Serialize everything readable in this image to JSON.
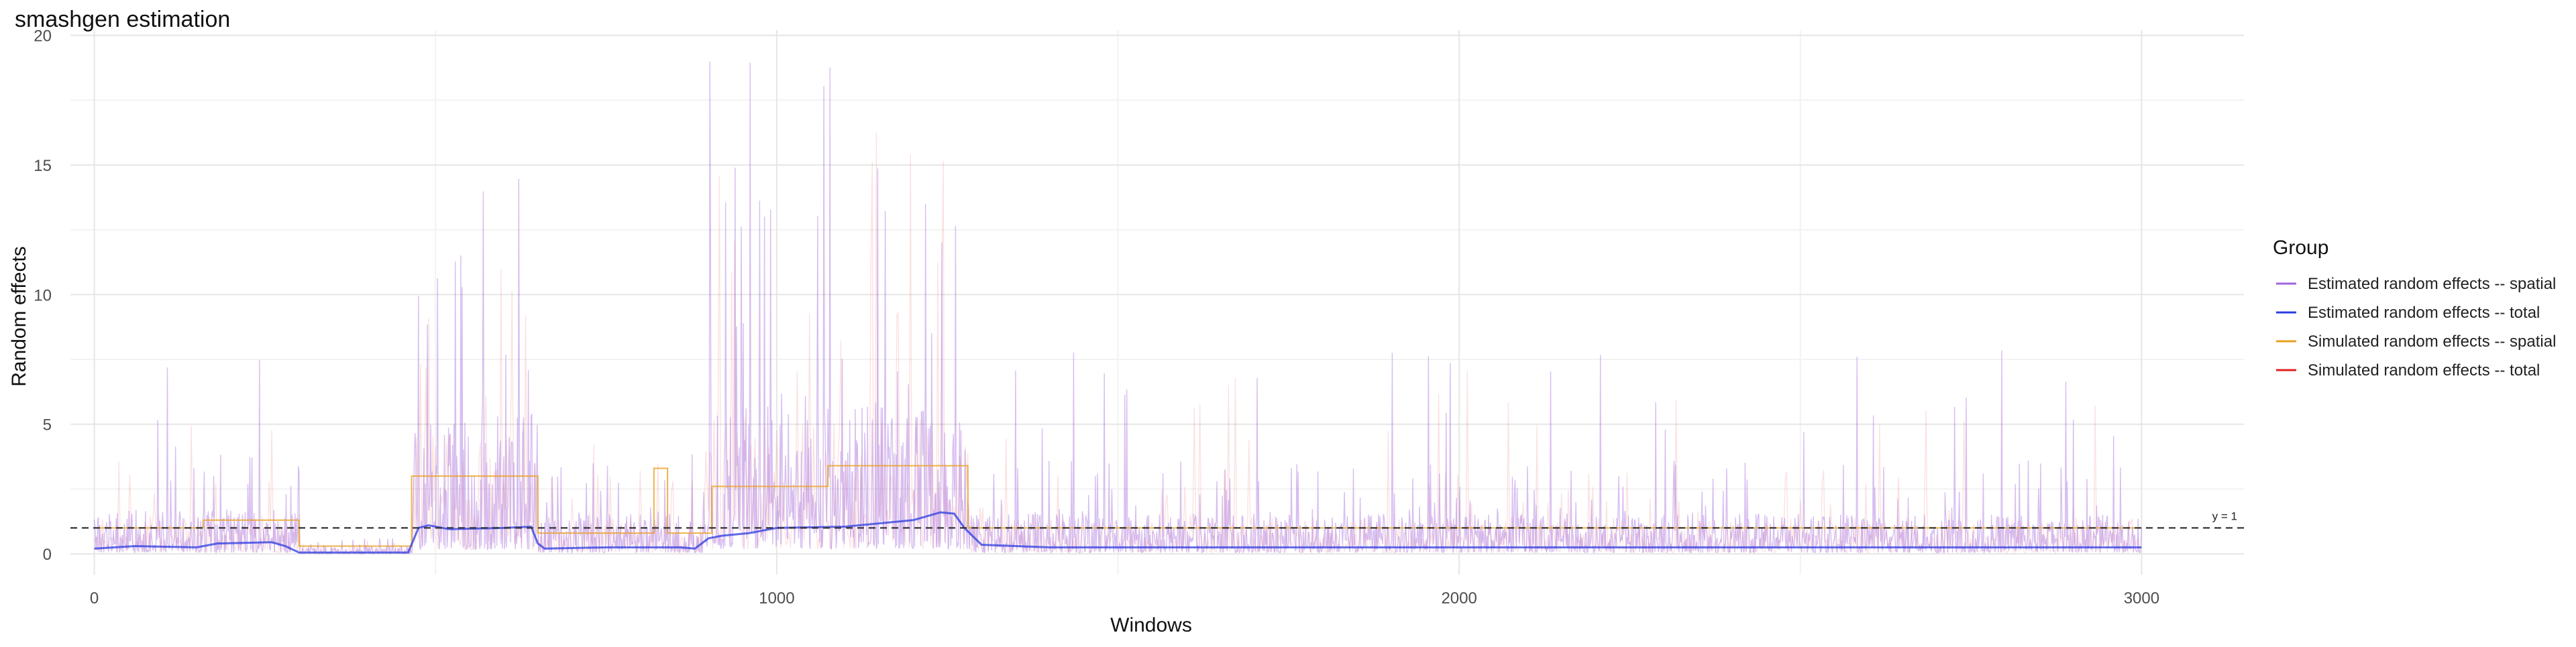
{
  "chart_data": {
    "type": "line",
    "title": "smashgen estimation",
    "xlabel": "Windows",
    "ylabel": "Random effects",
    "xlim": [
      -35,
      3150
    ],
    "ylim": [
      -0.8,
      20.2
    ],
    "x_ticks": [
      0,
      1000,
      2000,
      3000
    ],
    "y_ticks": [
      0,
      5,
      10,
      15,
      20
    ],
    "grid": true,
    "legend_position": "right",
    "legend_title": "Group",
    "reference_line": {
      "y": 1,
      "label": "y = 1",
      "style": "dashed"
    },
    "series": [
      {
        "name": "Estimated random effects -- spatial",
        "color": "#A064DC",
        "style": "noisy-line",
        "segments": [
          {
            "x_start": 0,
            "x_end": 300,
            "mean": 1.1,
            "peak": 7.5
          },
          {
            "x_start": 300,
            "x_end": 465,
            "mean": 0.2,
            "peak": 0.6
          },
          {
            "x_start": 465,
            "x_end": 650,
            "mean": 3.5,
            "peak": 16.0
          },
          {
            "x_start": 650,
            "x_end": 900,
            "mean": 1.0,
            "peak": 5.3
          },
          {
            "x_start": 900,
            "x_end": 1280,
            "mean": 3.8,
            "peak": 19.2
          },
          {
            "x_start": 1280,
            "x_end": 3000,
            "mean": 1.0,
            "peak": 8.1
          }
        ]
      },
      {
        "name": "Estimated random effects -- total",
        "color": "#2B3BE0",
        "style": "smooth-line",
        "points": [
          [
            0,
            0.2
          ],
          [
            60,
            0.3
          ],
          [
            150,
            0.25
          ],
          [
            180,
            0.4
          ],
          [
            260,
            0.45
          ],
          [
            280,
            0.3
          ],
          [
            300,
            0.05
          ],
          [
            460,
            0.05
          ],
          [
            475,
            1.0
          ],
          [
            490,
            1.1
          ],
          [
            520,
            0.95
          ],
          [
            600,
            1.0
          ],
          [
            640,
            1.05
          ],
          [
            650,
            0.4
          ],
          [
            660,
            0.2
          ],
          [
            750,
            0.25
          ],
          [
            860,
            0.25
          ],
          [
            880,
            0.2
          ],
          [
            900,
            0.6
          ],
          [
            920,
            0.7
          ],
          [
            960,
            0.8
          ],
          [
            1000,
            1.0
          ],
          [
            1100,
            1.05
          ],
          [
            1200,
            1.3
          ],
          [
            1240,
            1.6
          ],
          [
            1260,
            1.55
          ],
          [
            1275,
            1.0
          ],
          [
            1300,
            0.35
          ],
          [
            1400,
            0.25
          ],
          [
            2000,
            0.25
          ],
          [
            3000,
            0.25
          ]
        ]
      },
      {
        "name": "Simulated random effects -- spatial",
        "color": "#E8A020",
        "style": "step-line",
        "steps": [
          [
            0,
            1.0
          ],
          [
            160,
            1.3
          ],
          [
            300,
            0.3
          ],
          [
            465,
            3.0
          ],
          [
            650,
            0.8
          ],
          [
            820,
            3.3
          ],
          [
            840,
            0.8
          ],
          [
            905,
            2.6
          ],
          [
            1075,
            3.4
          ],
          [
            1280,
            1.0
          ],
          [
            3000,
            1.0
          ]
        ]
      },
      {
        "name": "Simulated random effects -- total",
        "color": "#E02020",
        "style": "faint-noisy-line",
        "points": []
      }
    ]
  }
}
